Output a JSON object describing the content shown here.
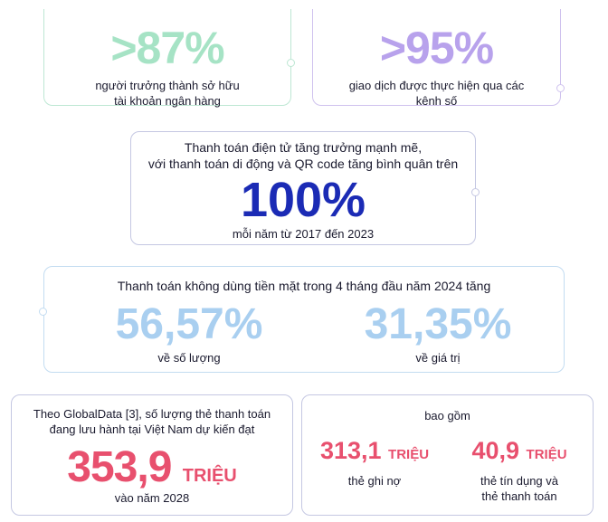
{
  "colors": {
    "green": "#a6e3c5",
    "purple": "#b8a2ec",
    "navy": "#1b2bb5",
    "light_blue": "#a9cff0",
    "pink": "#e8506e"
  },
  "card1": {
    "value": ">87%",
    "caption_line1": "người trưởng thành sở hữu",
    "caption_line2": "tài khoản ngân hàng"
  },
  "card2": {
    "value": ">95%",
    "caption_line1": "giao dịch được thực hiện qua các",
    "caption_line2": "kênh số"
  },
  "card3": {
    "intro_line1": "Thanh toán điện tử tăng trưởng mạnh mẽ,",
    "intro_line2": "với thanh toán di động và QR code tăng bình quân trên",
    "value": "100%",
    "footer": "mỗi năm từ 2017 đến 2023"
  },
  "card4": {
    "title": "Thanh toán không dùng tiền mặt trong 4 tháng đầu năm 2024 tăng",
    "stat1_value": "56,57%",
    "stat1_label": "về số lượng",
    "stat2_value": "31,35%",
    "stat2_label": "về giá trị"
  },
  "card5": {
    "intro_line1": "Theo GlobalData [3], số lượng thẻ thanh toán",
    "intro_line2": "đang lưu hành tại Việt Nam dự kiến đạt",
    "value_number": "353,9",
    "value_unit": "TRIỆU",
    "footer": "vào năm 2028"
  },
  "card6": {
    "title": "bao gồm",
    "stat1_number": "313,1",
    "stat1_unit": "TRIỆU",
    "stat1_label": "thẻ ghi nợ",
    "stat2_number": "40,9",
    "stat2_unit": "TRIỆU",
    "stat2_label_line1": "thẻ tín dụng và",
    "stat2_label_line2": "thẻ thanh toán"
  }
}
